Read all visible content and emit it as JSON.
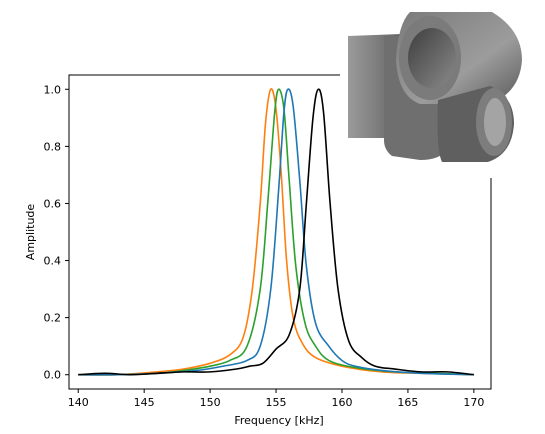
{
  "chart_data": {
    "type": "line",
    "title": "",
    "xlabel": "Frequency [kHz]",
    "ylabel": "Amplitude",
    "xlim": [
      139.3,
      171.3
    ],
    "ylim": [
      -0.05,
      1.05
    ],
    "grid": false,
    "legend": "none",
    "xticks": [
      140,
      145,
      150,
      155,
      160,
      165,
      170
    ],
    "xtick_labels": [
      "140",
      "145",
      "150",
      "155",
      "160",
      "165",
      "170"
    ],
    "yticks": [
      0.0,
      0.2,
      0.4,
      0.6,
      0.8,
      1.0
    ],
    "ytick_labels": [
      "0.0",
      "0.2",
      "0.4",
      "0.6",
      "0.8",
      "1.0"
    ],
    "series": [
      {
        "name": "orange",
        "color": "#ff7f0e",
        "x": [
          140,
          143,
          146,
          148,
          150,
          151.5,
          152.5,
          153.2,
          153.8,
          154.2,
          154.6,
          155.0,
          155.4,
          155.8,
          156.3,
          157,
          158,
          160,
          163,
          166,
          170
        ],
        "y": [
          0.0,
          0.0,
          0.01,
          0.02,
          0.04,
          0.07,
          0.13,
          0.3,
          0.6,
          0.88,
          1.0,
          0.93,
          0.7,
          0.4,
          0.2,
          0.11,
          0.06,
          0.03,
          0.01,
          0.005,
          0.0
        ]
      },
      {
        "name": "green",
        "color": "#2ca02c",
        "x": [
          140,
          143,
          146,
          148,
          150,
          151.5,
          152.8,
          153.8,
          154.4,
          154.9,
          155.2,
          155.6,
          156.0,
          156.5,
          157.2,
          158,
          159,
          161,
          164,
          167,
          170
        ],
        "y": [
          0.0,
          0.0,
          0.005,
          0.015,
          0.03,
          0.05,
          0.1,
          0.3,
          0.62,
          0.92,
          1.0,
          0.93,
          0.68,
          0.38,
          0.18,
          0.1,
          0.05,
          0.025,
          0.01,
          0.005,
          0.0
        ]
      },
      {
        "name": "blue",
        "color": "#1f77b4",
        "x": [
          140,
          143,
          146,
          149,
          151,
          152.8,
          153.8,
          154.6,
          155.2,
          155.6,
          155.9,
          156.3,
          156.8,
          157.3,
          158,
          159,
          160,
          161,
          163,
          166,
          170
        ],
        "y": [
          0.0,
          0.0,
          0.005,
          0.015,
          0.03,
          0.05,
          0.1,
          0.3,
          0.65,
          0.92,
          1.0,
          0.94,
          0.68,
          0.38,
          0.18,
          0.1,
          0.05,
          0.03,
          0.015,
          0.005,
          0.0
        ]
      },
      {
        "name": "black",
        "color": "#000000",
        "x": [
          140,
          142,
          144,
          146,
          148,
          150,
          152,
          153,
          154,
          155,
          156,
          156.8,
          157.3,
          157.8,
          158.2,
          158.6,
          159.1,
          159.7,
          160.5,
          161.5,
          162.5,
          164,
          166,
          168,
          170
        ],
        "y": [
          0.0,
          0.005,
          0.0,
          0.005,
          0.01,
          0.01,
          0.02,
          0.03,
          0.04,
          0.09,
          0.14,
          0.3,
          0.6,
          0.9,
          1.0,
          0.92,
          0.6,
          0.3,
          0.12,
          0.06,
          0.03,
          0.02,
          0.01,
          0.01,
          0.0
        ]
      }
    ],
    "inset": {
      "depicts": "3d-rendered-pipe-fitting",
      "color": "#8e8e8e"
    }
  }
}
